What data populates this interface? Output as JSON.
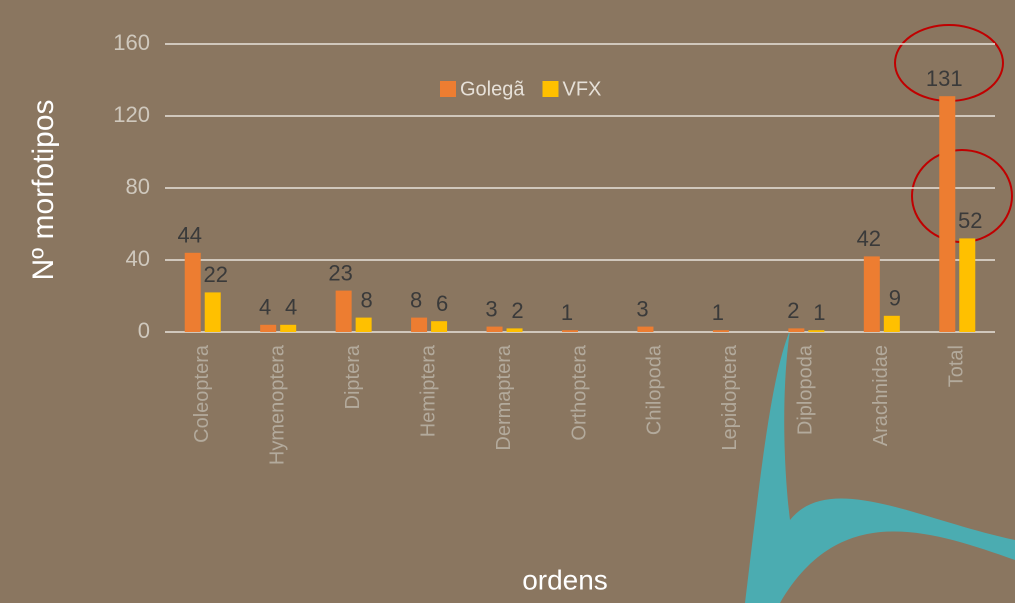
{
  "chart_data": {
    "type": "bar",
    "y_label": "Nº morfotipos",
    "x_label": "ordens",
    "categories": [
      "Coleoptera",
      "Hymenoptera",
      "Diptera",
      "Hemiptera",
      "Dermaptera",
      "Orthoptera",
      "Chilopoda",
      "Lepidoptera",
      "Diplopoda",
      "Arachnidae",
      "Total"
    ],
    "series": [
      {
        "name": "Golegã",
        "color": "#ed7d31",
        "values": [
          44,
          4,
          23,
          8,
          3,
          1,
          3,
          1,
          2,
          42,
          131
        ]
      },
      {
        "name": "VFX",
        "color": "#ffc000",
        "values": [
          22,
          4,
          8,
          6,
          2,
          null,
          null,
          null,
          1,
          9,
          52
        ]
      }
    ],
    "ylim": [
      0,
      160
    ],
    "yticks": [
      0,
      40,
      80,
      120,
      160
    ],
    "grid": true,
    "legend": "top"
  }
}
